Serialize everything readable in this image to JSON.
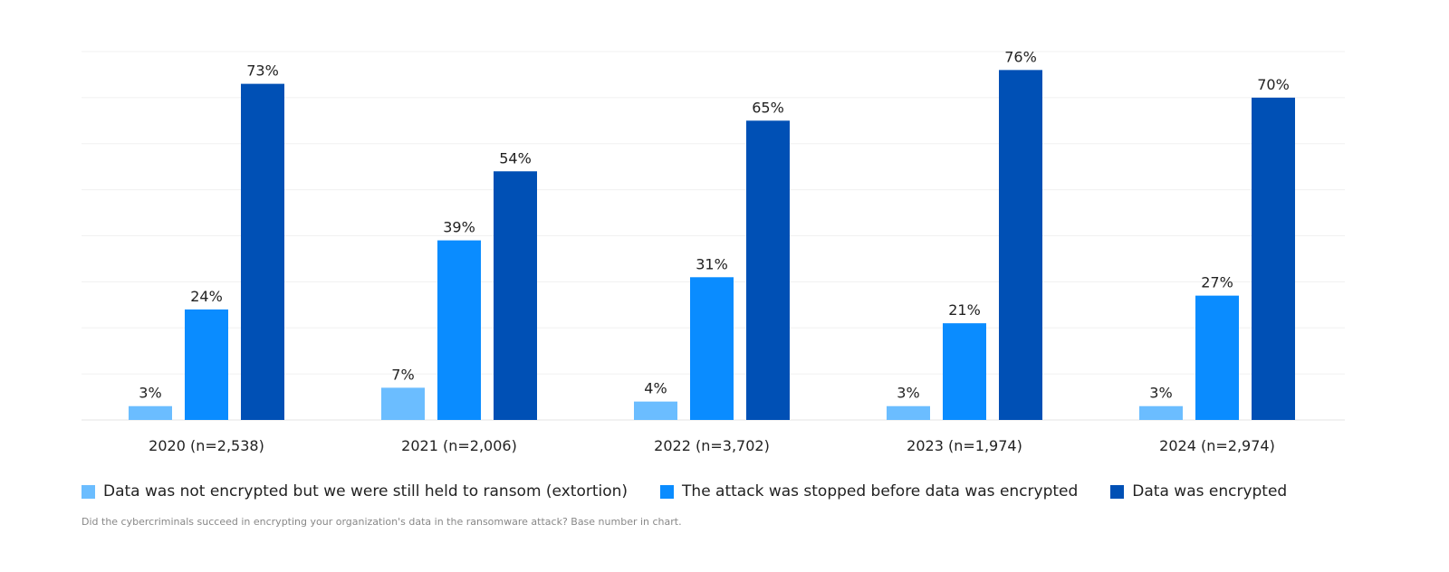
{
  "chart_data": {
    "type": "bar",
    "categories": [
      "2020 (n=2,538)",
      "2021 (n=2,006)",
      "2022 (n=3,702)",
      "2023 (n=1,974)",
      "2024 (n=2,974)"
    ],
    "series": [
      {
        "name": "Data was not encrypted but we were still held to ransom (extortion)",
        "color": "#6bbdff",
        "values": [
          3,
          7,
          4,
          3,
          3
        ]
      },
      {
        "name": "The attack was stopped before data was encrypted",
        "color": "#0a8cff",
        "values": [
          24,
          39,
          31,
          21,
          27
        ]
      },
      {
        "name": "Data was encrypted",
        "color": "#0050b5",
        "values": [
          73,
          54,
          65,
          76,
          70
        ]
      }
    ],
    "value_suffix": "%",
    "ylim": [
      0,
      80
    ],
    "grid": true,
    "legend_position": "bottom",
    "caption": "Did the cybercriminals succeed in encrypting your organization's data in the ransomware attack? Base number in chart."
  }
}
